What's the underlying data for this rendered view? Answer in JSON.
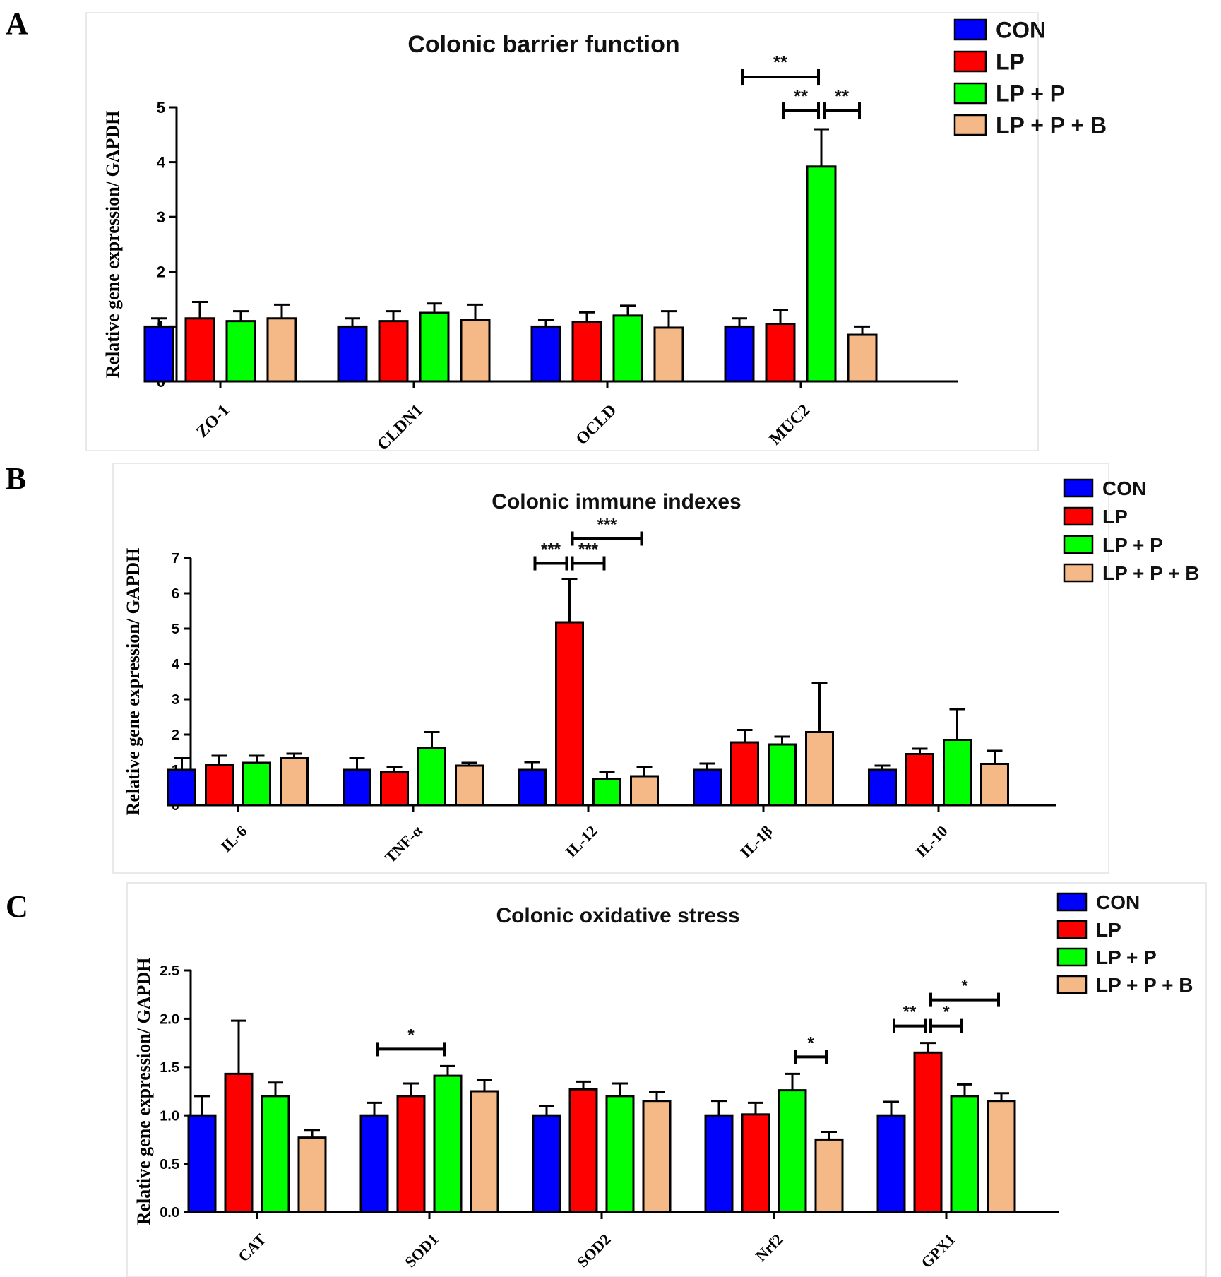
{
  "series_colors": [
    "#0000ff",
    "#ff0000",
    "#00ff00",
    "#f4b986"
  ],
  "chart_data": [
    {
      "panel": "A",
      "type": "bar",
      "title": "Colonic barrier function",
      "ylabel": "Relative gene expression/ GAPDH",
      "ylim": [
        0,
        5
      ],
      "yticks": [
        0,
        1,
        2,
        3,
        4,
        5
      ],
      "yticklabels": [
        "0",
        "1",
        "2",
        "3",
        "4",
        "5"
      ],
      "categories": [
        "ZO-1",
        "CLDN1",
        "OCLD",
        "MUC2"
      ],
      "series": [
        {
          "name": "CON",
          "values": [
            1.0,
            1.0,
            1.0,
            1.0
          ],
          "errors": [
            0.15,
            0.15,
            0.12,
            0.15
          ]
        },
        {
          "name": "LP",
          "values": [
            1.15,
            1.1,
            1.08,
            1.05
          ],
          "errors": [
            0.3,
            0.18,
            0.18,
            0.25
          ]
        },
        {
          "name": "LP + P",
          "values": [
            1.1,
            1.25,
            1.2,
            3.92
          ],
          "errors": [
            0.18,
            0.17,
            0.18,
            0.68
          ]
        },
        {
          "name": "LP + P + B",
          "values": [
            1.15,
            1.12,
            0.98,
            0.85
          ],
          "errors": [
            0.25,
            0.28,
            0.3,
            0.15
          ]
        }
      ],
      "legend_position": "top-right",
      "significance": [
        {
          "category": "MUC2",
          "from_series": 0,
          "to_series": 2,
          "label": "**",
          "level": 2
        },
        {
          "category": "MUC2",
          "from_series": 1,
          "to_series": 2,
          "label": "**",
          "level": 1
        },
        {
          "category": "MUC2",
          "from_series": 2,
          "to_series": 3,
          "label": "**",
          "level": 1
        }
      ]
    },
    {
      "panel": "B",
      "type": "bar",
      "title": "Colonic immune indexes",
      "ylabel": "Relative gene expression/ GAPDH",
      "ylim": [
        0,
        7
      ],
      "yticks": [
        0,
        1,
        2,
        3,
        4,
        5,
        6,
        7
      ],
      "yticklabels": [
        "0",
        "1",
        "2",
        "3",
        "4",
        "5",
        "6",
        "7"
      ],
      "categories": [
        "IL-6",
        "TNF-α",
        "IL-12",
        "IL-1β",
        "IL-10"
      ],
      "series": [
        {
          "name": "CON",
          "values": [
            1.0,
            1.0,
            1.0,
            1.0,
            1.0
          ],
          "errors": [
            0.33,
            0.33,
            0.22,
            0.18,
            0.12
          ]
        },
        {
          "name": "LP",
          "values": [
            1.15,
            0.95,
            5.18,
            1.78,
            1.45
          ],
          "errors": [
            0.25,
            0.12,
            1.23,
            0.35,
            0.15
          ]
        },
        {
          "name": "LP + P",
          "values": [
            1.2,
            1.62,
            0.75,
            1.72,
            1.85
          ],
          "errors": [
            0.2,
            0.45,
            0.2,
            0.22,
            0.87
          ]
        },
        {
          "name": "LP + P + B",
          "values": [
            1.33,
            1.12,
            0.82,
            2.07,
            1.17
          ],
          "errors": [
            0.13,
            0.08,
            0.25,
            1.38,
            0.37
          ]
        }
      ],
      "legend_position": "top-right",
      "significance": [
        {
          "category": "IL-12",
          "from_series": 0,
          "to_series": 1,
          "label": "***",
          "level": 1
        },
        {
          "category": "IL-12",
          "from_series": 1,
          "to_series": 2,
          "label": "***",
          "level": 1
        },
        {
          "category": "IL-12",
          "from_series": 1,
          "to_series": 3,
          "label": "***",
          "level": 2
        }
      ]
    },
    {
      "panel": "C",
      "type": "bar",
      "title": "Colonic oxidative stress",
      "ylabel": "Relative gene expression/ GAPDH",
      "ylim": [
        0,
        2.5
      ],
      "yticks": [
        0,
        0.5,
        1.0,
        1.5,
        2.0,
        2.5
      ],
      "yticklabels": [
        "0.0",
        "0.5",
        "1.0",
        "1.5",
        "2.0",
        "2.5"
      ],
      "categories": [
        "CAT",
        "SOD1",
        "SOD2",
        "Nrf2",
        "GPX1"
      ],
      "series": [
        {
          "name": "CON",
          "values": [
            1.0,
            1.0,
            1.0,
            1.0,
            1.0
          ],
          "errors": [
            0.2,
            0.13,
            0.1,
            0.15,
            0.14
          ]
        },
        {
          "name": "LP",
          "values": [
            1.43,
            1.2,
            1.27,
            1.01,
            1.65
          ],
          "errors": [
            0.55,
            0.13,
            0.08,
            0.12,
            0.1
          ]
        },
        {
          "name": "LP + P",
          "values": [
            1.2,
            1.41,
            1.2,
            1.26,
            1.2
          ],
          "errors": [
            0.14,
            0.1,
            0.13,
            0.17,
            0.12
          ]
        },
        {
          "name": "LP + P + B",
          "values": [
            0.77,
            1.25,
            1.15,
            0.75,
            1.15
          ],
          "errors": [
            0.08,
            0.12,
            0.09,
            0.08,
            0.08
          ]
        }
      ],
      "legend_position": "top-right",
      "significance": [
        {
          "category": "SOD1",
          "from_series": 0,
          "to_series": 2,
          "label": "*",
          "level": 1
        },
        {
          "category": "Nrf2",
          "from_series": 2,
          "to_series": 3,
          "label": "*",
          "level": 1
        },
        {
          "category": "GPX1",
          "from_series": 0,
          "to_series": 1,
          "label": "**",
          "level": 1
        },
        {
          "category": "GPX1",
          "from_series": 1,
          "to_series": 2,
          "label": "*",
          "level": 1
        },
        {
          "category": "GPX1",
          "from_series": 1,
          "to_series": 3,
          "label": "*",
          "level": 2
        }
      ]
    }
  ]
}
